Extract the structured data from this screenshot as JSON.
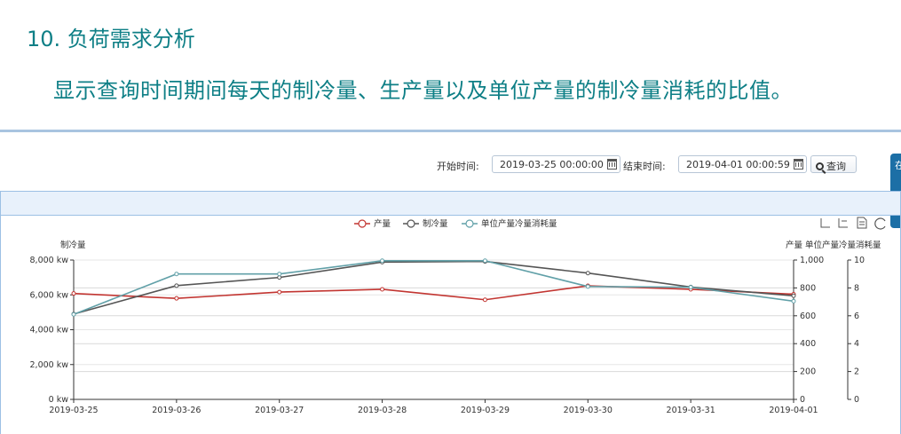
{
  "heading": "10. 负荷需求分析",
  "subheading": "显示查询时间期间每天的制冷量、生产量以及单位产量的制冷量消耗的比值。",
  "query": {
    "start_label": "开始时间:",
    "start_value": "2019-03-25 00:00:00",
    "end_label": "结束时间:",
    "end_value": "2019-04-01 00:00:59",
    "search_label": "查询",
    "search_icon": "search-icon",
    "calendar_icon": "calendar-icon"
  },
  "side_tab": "在",
  "toolbar": [
    "zoom-icon",
    "zoom-reset-icon",
    "data-view-icon",
    "restore-icon"
  ],
  "chart_data": {
    "type": "line",
    "categories": [
      "2019-03-25",
      "2019-03-26",
      "2019-03-27",
      "2019-03-28",
      "2019-03-29",
      "2019-03-30",
      "2019-03-31",
      "2019-04-01"
    ],
    "yaxis_left": {
      "label": "制冷量",
      "ticks": [
        "8,000 kw",
        "6,000 kw",
        "4,000 kw",
        "2,000 kw",
        "0 kw"
      ],
      "range": [
        0,
        8000
      ]
    },
    "yaxis_right1": {
      "label": "产量",
      "ticks": [
        "1,000",
        "800",
        "600",
        "400",
        "200",
        "0"
      ],
      "range": [
        0,
        1000
      ]
    },
    "yaxis_right2": {
      "label": "单位产量冷量消耗量",
      "ticks": [
        "10",
        "8",
        "6",
        "4",
        "2",
        "0"
      ],
      "range": [
        0,
        10
      ]
    },
    "series": [
      {
        "name": "产量",
        "axis": "right1",
        "color": "#c23531",
        "values": [
          760,
          725,
          770,
          790,
          715,
          815,
          790,
          755
        ]
      },
      {
        "name": "制冷量",
        "axis": "left",
        "color": "#555555",
        "values": [
          4900,
          6530,
          7000,
          7880,
          7920,
          7250,
          6450,
          5950
        ]
      },
      {
        "name": "单位产量冷量消耗量",
        "axis": "right2",
        "color": "#61a0a8",
        "values": [
          6.1,
          9.0,
          9.0,
          9.95,
          9.95,
          8.1,
          8.05,
          7.05
        ]
      }
    ],
    "grid": true,
    "legend": "top-center"
  }
}
